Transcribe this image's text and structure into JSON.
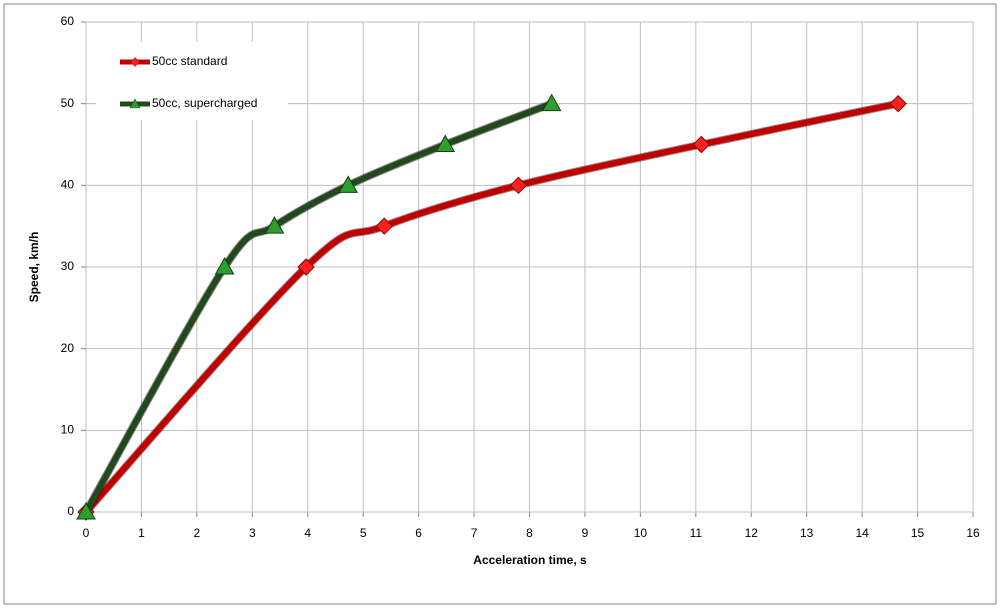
{
  "chart_data": {
    "type": "scatter-smooth",
    "xlabel": "Acceleration time, s",
    "ylabel": "Speed, km/h",
    "xlim": [
      0,
      16
    ],
    "xticks": [
      0,
      1,
      2,
      3,
      4,
      5,
      6,
      7,
      8,
      9,
      10,
      11,
      12,
      13,
      14,
      15,
      16
    ],
    "ylim": [
      0,
      60
    ],
    "yticks": [
      0,
      10,
      20,
      30,
      40,
      50,
      60
    ],
    "grid": true,
    "legend": "upper left",
    "series": [
      {
        "name": "50cc standard",
        "color": "#c00000",
        "marker": "diamond",
        "x": [
          0,
          3.97,
          5.38,
          7.8,
          11.1,
          14.65
        ],
        "values": [
          0,
          30,
          35,
          40,
          45,
          50
        ]
      },
      {
        "name": "50cc, supercharged",
        "color": "#1e4a1e",
        "marker": "triangle",
        "x": [
          0,
          2.5,
          3.4,
          4.73,
          6.48,
          8.4
        ],
        "values": [
          0,
          30,
          35,
          40,
          45,
          50
        ]
      }
    ]
  }
}
